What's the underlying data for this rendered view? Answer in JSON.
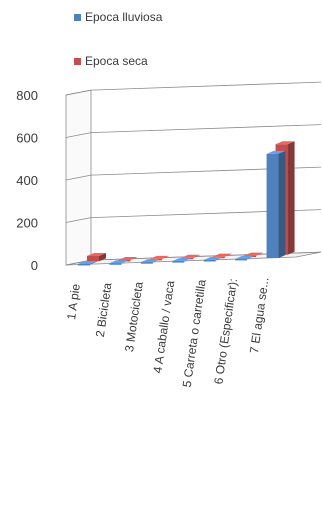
{
  "chart_data": {
    "type": "bar",
    "style": "3d-clustered-column",
    "categories": [
      "1  A pie",
      "2  Bicicleta",
      "3  Motocicleta",
      "4  A caballo / vaca",
      "5  Carreta o carretilla",
      "6  Otro (Especificar):",
      "7  El agua se..."
    ],
    "series": [
      {
        "name": "Epoca lluviosa",
        "color": "#4f81bd",
        "values": [
          3,
          1,
          1,
          1,
          1,
          1,
          490
        ]
      },
      {
        "name": "Epoca seca",
        "color": "#c0504d",
        "values": [
          25,
          1,
          1,
          1,
          1,
          1,
          520
        ]
      }
    ],
    "ylim": [
      0,
      800
    ],
    "yticks": [
      "0",
      "200",
      "400",
      "600",
      "800"
    ],
    "grid": true,
    "legend_position": "top"
  }
}
